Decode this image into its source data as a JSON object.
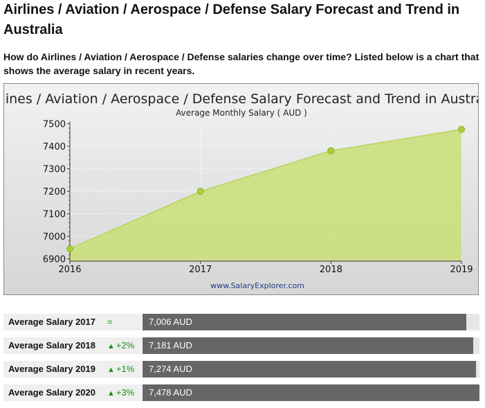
{
  "page": {
    "title": "Airlines / Aviation / Aerospace / Defense Salary Forecast and Trend in Australia",
    "intro": "How do Airlines / Aviation / Aerospace / Defense salaries change over time? Listed below is a chart that shows the average salary in recent years."
  },
  "chart_data": {
    "type": "area",
    "title": "Airlines / Aviation / Aerospace / Defense Salary Forecast and Trend in Australia",
    "subtitle": "Average Monthly Salary ( AUD )",
    "x": [
      "2016",
      "2017",
      "2018",
      "2019"
    ],
    "values": [
      6945,
      7200,
      7380,
      7475
    ],
    "ylim": [
      6890,
      7505
    ],
    "yticks": [
      6900,
      7000,
      7100,
      7200,
      7300,
      7400,
      7500
    ],
    "credit": "www.SalaryExplorer.com",
    "colors": {
      "fill": "#c9df77",
      "line": "#b6d35a",
      "point": "#aacf3a",
      "point_stroke": "#8fae28"
    }
  },
  "rows": [
    {
      "label": "Average Salary 2017",
      "change": "=",
      "up": false,
      "value": "7,006 AUD",
      "share": 0.962
    },
    {
      "label": "Average Salary 2018",
      "change": "+2%",
      "up": true,
      "value": "7,181 AUD",
      "share": 0.981
    },
    {
      "label": "Average Salary 2019",
      "change": "+1%",
      "up": true,
      "value": "7,274 AUD",
      "share": 0.99
    },
    {
      "label": "Average Salary 2020",
      "change": "+3%",
      "up": true,
      "value": "7,478 AUD",
      "share": 1.0
    }
  ]
}
